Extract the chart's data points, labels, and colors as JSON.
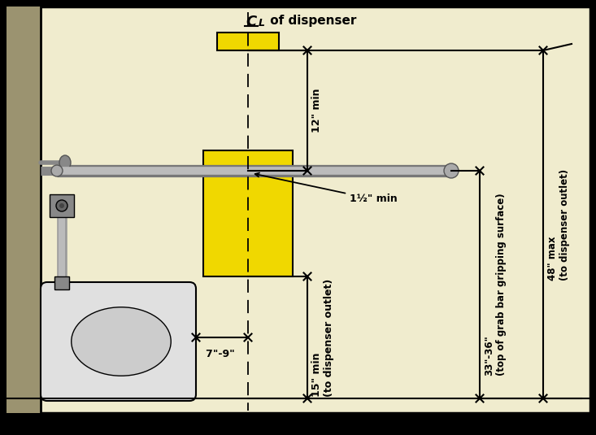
{
  "bg_color": "#f0ecce",
  "wall_color": "#9b9370",
  "black": "#000000",
  "dark_gray": "#555555",
  "gray": "#888888",
  "light_gray": "#c8c8c8",
  "yellow": "#f0d800",
  "white": "#ffffff",
  "fig_width": 7.33,
  "fig_height": 5.35,
  "dpi": 100,
  "dim_12_text": "12\" min",
  "dim_15_text": "15\" min\n(to dispenser outlet)",
  "dim_1half_text": "1½\" min",
  "dim_33_36_text": "33\"-36\"\n(top of grab bar gripping surface)",
  "dim_48_text": "48\" max\n(to dispenser outlet)",
  "dim_7_9_text": "7\"-9\" "
}
